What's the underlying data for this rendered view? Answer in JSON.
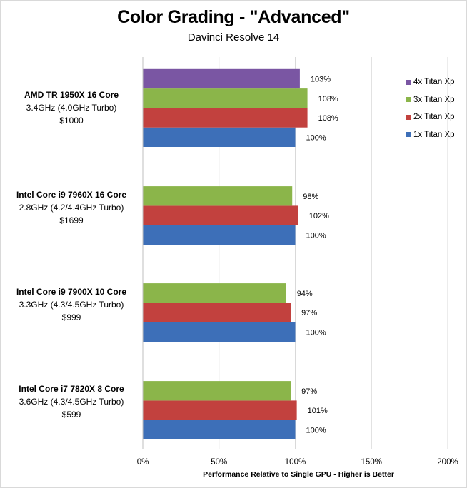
{
  "chart_data": {
    "type": "bar",
    "orientation": "horizontal",
    "title": "Color Grading - \"Advanced\"",
    "subtitle": "Davinci Resolve 14",
    "xlabel": "Performance  Relative to Single GPU - Higher is Better",
    "ylabel": "",
    "xlim": [
      0,
      200
    ],
    "xticks": [
      "0%",
      "50%",
      "100%",
      "150%",
      "200%"
    ],
    "xtick_values": [
      0,
      50,
      100,
      150,
      200
    ],
    "grid": true,
    "legend_position": "top-right",
    "categories": [
      {
        "name": "AMD TR 1950X 16 Core",
        "line2": "3.4GHz (4.0GHz Turbo)",
        "line3": "$1000"
      },
      {
        "name": "Intel Core i9 7960X 16 Core",
        "line2": "2.8GHz (4.2/4.4GHz Turbo)",
        "line3": "$1699"
      },
      {
        "name": "Intel Core i9 7900X 10 Core",
        "line2": "3.3GHz (4.3/4.5GHz Turbo)",
        "line3": "$999"
      },
      {
        "name": "Intel Core i7 7820X 8 Core",
        "line2": "3.6GHz (4.3/4.5GHz Turbo)",
        "line3": "$599"
      }
    ],
    "series": [
      {
        "name": "4x Titan Xp",
        "color": "#7a56a3",
        "values": [
          103,
          null,
          null,
          null
        ],
        "labels": [
          "103%",
          null,
          null,
          null
        ]
      },
      {
        "name": "3x Titan Xp",
        "color": "#8bb54a",
        "values": [
          108,
          98,
          94,
          97
        ],
        "labels": [
          "108%",
          "98%",
          "94%",
          "97%"
        ]
      },
      {
        "name": "2x Titan Xp",
        "color": "#c2413e",
        "values": [
          108,
          102,
          97,
          101
        ],
        "labels": [
          "108%",
          "102%",
          "97%",
          "101%"
        ]
      },
      {
        "name": "1x Titan Xp",
        "color": "#3d6fb8",
        "values": [
          100,
          100,
          100,
          100
        ],
        "labels": [
          "100%",
          "100%",
          "100%",
          "100%"
        ]
      }
    ]
  }
}
